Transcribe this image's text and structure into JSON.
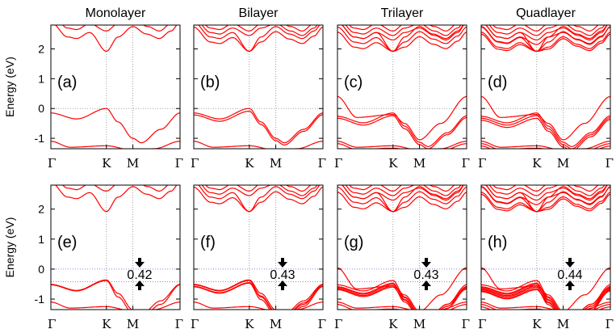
{
  "figure": {
    "columns": [
      "Monolayer",
      "Bilayer",
      "Trilayer",
      "Quadlayer"
    ],
    "ylabel": "Energy (eV)",
    "yticks": [
      "2",
      "1",
      "0",
      "-1"
    ],
    "kpoints": [
      "Γ",
      "K",
      "M",
      "Γ"
    ],
    "colors": {
      "bands": "#ff0000",
      "fermi": "#888888",
      "gap_lines": "#6a5acd"
    }
  },
  "chart_data": [
    {
      "type": "line",
      "label": "(a)",
      "title": "Monolayer",
      "ylabel": "Energy (eV)",
      "x": [
        "Γ",
        "K",
        "M",
        "Γ"
      ],
      "ylim": [
        -1.35,
        2.8
      ],
      "layers": 1,
      "soc": false
    },
    {
      "type": "line",
      "label": "(b)",
      "title": "Bilayer",
      "x": [
        "Γ",
        "K",
        "M",
        "Γ"
      ],
      "ylim": [
        -1.35,
        2.8
      ],
      "layers": 2,
      "soc": false
    },
    {
      "type": "line",
      "label": "(c)",
      "title": "Trilayer",
      "x": [
        "Γ",
        "K",
        "M",
        "Γ"
      ],
      "ylim": [
        -1.35,
        2.8
      ],
      "layers": 3,
      "soc": false
    },
    {
      "type": "line",
      "label": "(d)",
      "title": "Quadlayer",
      "x": [
        "Γ",
        "K",
        "M",
        "Γ"
      ],
      "ylim": [
        -1.35,
        2.8
      ],
      "layers": 4,
      "soc": false
    },
    {
      "type": "line",
      "label": "(e)",
      "ylabel": "Energy (eV)",
      "x": [
        "Γ",
        "K",
        "M",
        "Γ"
      ],
      "ylim": [
        -1.35,
        2.8
      ],
      "layers": 1,
      "soc": true,
      "gap": "0.42"
    },
    {
      "type": "line",
      "label": "(f)",
      "x": [
        "Γ",
        "K",
        "M",
        "Γ"
      ],
      "ylim": [
        -1.35,
        2.8
      ],
      "layers": 2,
      "soc": true,
      "gap": "0.43"
    },
    {
      "type": "line",
      "label": "(g)",
      "x": [
        "Γ",
        "K",
        "M",
        "Γ"
      ],
      "ylim": [
        -1.35,
        2.8
      ],
      "layers": 3,
      "soc": true,
      "gap": "0.43"
    },
    {
      "type": "line",
      "label": "(h)",
      "x": [
        "Γ",
        "K",
        "M",
        "Γ"
      ],
      "ylim": [
        -1.35,
        2.8
      ],
      "layers": 4,
      "soc": true,
      "gap": "0.44"
    }
  ]
}
